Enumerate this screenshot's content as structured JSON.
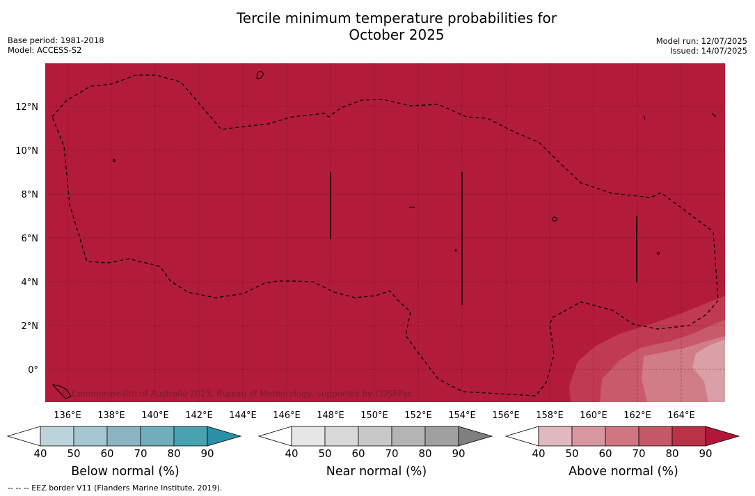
{
  "header": {
    "title_line1": "Tercile minimum temperature probabilities for",
    "title_line2": "October 2025",
    "base_period": "Base period: 1981-2018",
    "model": "Model: ACCESS-S2",
    "model_run": "Model run: 12/07/2025",
    "issued": "Issued: 14/07/2025"
  },
  "map": {
    "colors": {
      "above_90": "#b21c3a",
      "above_80": "#c03a52",
      "above_70": "#c85a6b",
      "above_60": "#d17d88",
      "above_50": "#daa0a7",
      "grid": "#5a0f1e",
      "eez": "#000000"
    },
    "lon_ticks": [
      "136°E",
      "138°E",
      "140°E",
      "142°E",
      "144°E",
      "146°E",
      "148°E",
      "150°E",
      "152°E",
      "154°E",
      "156°E",
      "158°E",
      "160°E",
      "162°E",
      "164°E"
    ],
    "lat_ticks": [
      "12°N",
      "10°N",
      "8°N",
      "6°N",
      "4°N",
      "2°N",
      "0°"
    ],
    "copyright": "© Commonwealth of Australia 2025, Bureau of Meteorology, supported by COSPPac"
  },
  "legends": [
    {
      "title": "Below normal (%)",
      "ticks": [
        "40",
        "50",
        "60",
        "70",
        "80",
        "90"
      ],
      "colors": [
        "#ffffff",
        "#bcd3da",
        "#a5c7cf",
        "#8bb6c1",
        "#6faeba",
        "#4aa2b1",
        "#2a90a6"
      ]
    },
    {
      "title": "Near normal (%)",
      "ticks": [
        "40",
        "50",
        "60",
        "70",
        "80",
        "90"
      ],
      "colors": [
        "#ffffff",
        "#e6e6e6",
        "#d8d8d8",
        "#c8c8c8",
        "#b4b4b4",
        "#a0a0a0",
        "#7f7f7f"
      ]
    },
    {
      "title": "Above normal (%)",
      "ticks": [
        "40",
        "50",
        "60",
        "70",
        "80",
        "90"
      ],
      "colors": [
        "#ffffff",
        "#e0b8bd",
        "#d8979f",
        "#cf7680",
        "#c45866",
        "#b93248",
        "#b2173a"
      ]
    }
  ],
  "footnote": "--  --  -- EEZ border V11 (Flanders Marine Institute, 2019)."
}
